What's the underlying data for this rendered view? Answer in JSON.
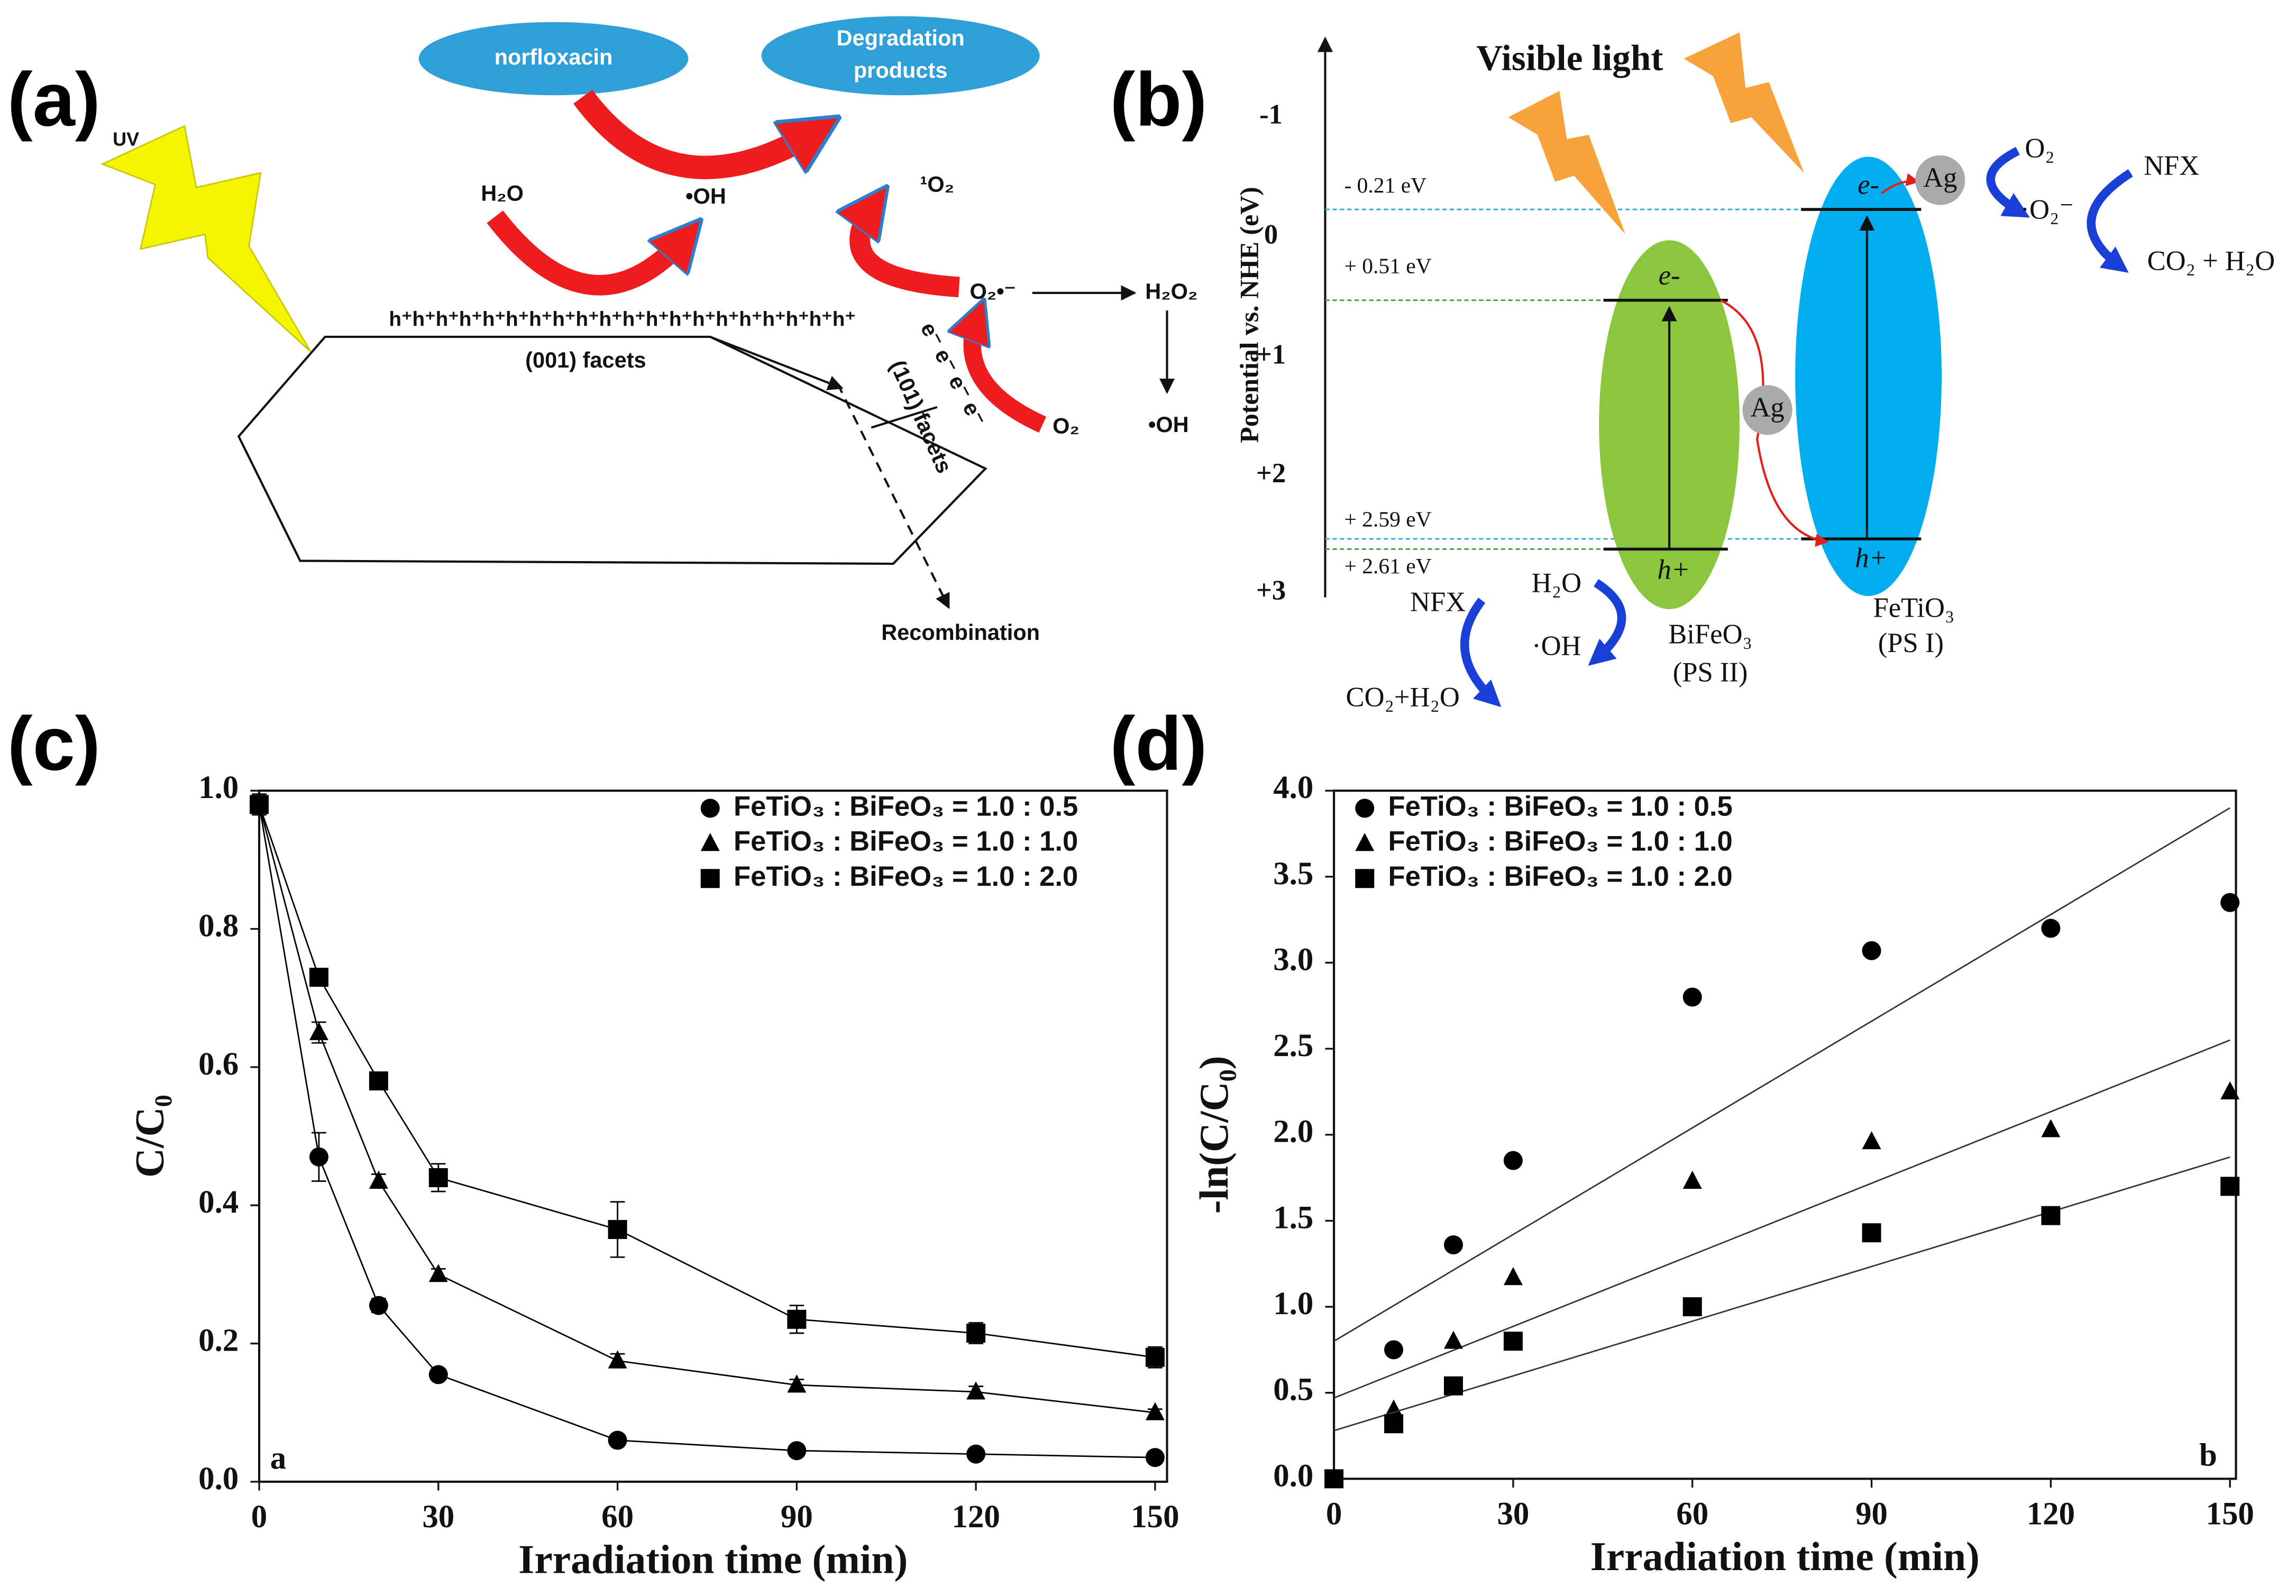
{
  "panel_a": {
    "label": "(a)",
    "light": "UV",
    "reactant": "norfloxacin",
    "product_lines": [
      "Degradation",
      "products"
    ],
    "water": "H₂O",
    "hydroxyl": "•OH",
    "singlet_oxygen": "¹O₂",
    "superoxide": "O₂•⁻",
    "peroxide": "H₂O₂",
    "hydroxyl_2": "•OH",
    "oxygen": "O₂",
    "holes": "h⁺h⁺h⁺h⁺h⁺h⁺h⁺h⁺h⁺h⁺h⁺h⁺h⁺h⁺h⁺h⁺h⁺h⁺h⁺h⁺",
    "facet_001": "(001) facets",
    "electrons": "e⁻ e⁻ e⁻ e⁻",
    "facet_101": "(101) facets",
    "recombination": "Recombination"
  },
  "panel_b": {
    "label": "(b)",
    "light": "Visible light",
    "axis_title": "Potential vs. NHE (eV)",
    "axis_ticks": [
      "-1",
      "0",
      "+1",
      "+2",
      "+3"
    ],
    "levels": [
      "- 0.21 eV",
      "+ 0.51 eV",
      "+ 2.59 eV",
      "+ 2.61 eV"
    ],
    "bifeo3": {
      "electron": "e-",
      "hole": "h+",
      "name": "BiFeO₃",
      "role": "(PS II)"
    },
    "fetio3": {
      "electron": "e-",
      "hole": "h+",
      "name": "FeTiO₃",
      "role": "(PS I)"
    },
    "silver": [
      "Ag",
      "Ag"
    ],
    "oxygen": "O₂",
    "superoxide": "·O₂⁻",
    "nfx_top": "NFX",
    "products_top": "CO₂ + H₂O",
    "water": "H₂O",
    "hydroxyl": "·OH",
    "nfx_bottom": "NFX",
    "products_bottom": "CO₂+H₂O"
  },
  "chart_data": [
    {
      "type": "line",
      "label": "(c)",
      "annotation": "a",
      "x_label": "Irradiation time (min)",
      "y_label": "C/C₀",
      "x": [
        0,
        10,
        20,
        30,
        60,
        90,
        120,
        150
      ],
      "xlim": [
        0,
        152
      ],
      "xticks": [
        0,
        30,
        60,
        90,
        120,
        150
      ],
      "ylim": [
        0,
        1
      ],
      "yticks": [
        {
          "value": 0,
          "label": "0.0"
        },
        {
          "value": 0.2,
          "label": "0.2"
        },
        {
          "value": 0.4,
          "label": "0.4"
        },
        {
          "value": 0.6,
          "label": "0.6"
        },
        {
          "value": 0.8,
          "label": "0.8"
        },
        {
          "value": 1,
          "label": "1.0"
        }
      ],
      "series": [
        {
          "name": "FeTiO₃ : BiFeO₃ = 1.0 : 0.5",
          "color": "#000000",
          "marker": "circle",
          "values": [
            0.98,
            0.47,
            0.255,
            0.155,
            0.06,
            0.045,
            0.04,
            0.035
          ],
          "errors": [
            0.01,
            0.035,
            0.01,
            0.005,
            0.005,
            0.005,
            0.005,
            0.005
          ]
        },
        {
          "name": "FeTiO₃ : BiFeO₃ = 1.0 : 1.0",
          "color": "#000000",
          "marker": "triangle",
          "values": [
            0.98,
            0.65,
            0.435,
            0.3,
            0.175,
            0.14,
            0.13,
            0.1
          ],
          "errors": [
            0.01,
            0.015,
            0.01,
            0.008,
            0.01,
            0.008,
            0.008,
            0.005
          ]
        },
        {
          "name": "FeTiO₃ : BiFeO₃ = 1.0 : 2.0",
          "color": "#000000",
          "marker": "square",
          "values": [
            0.98,
            0.73,
            0.58,
            0.44,
            0.365,
            0.235,
            0.215,
            0.18
          ],
          "errors": [
            0.015,
            0.01,
            0.01,
            0.02,
            0.04,
            0.02,
            0.015,
            0.015
          ]
        }
      ]
    },
    {
      "type": "scatter",
      "label": "(d)",
      "annotation": "b",
      "x_label": "Irradiation time (min)",
      "y_label": "-ln(C/C₀)",
      "x": [
        0,
        10,
        20,
        30,
        60,
        90,
        120,
        150
      ],
      "xlim": [
        0,
        151
      ],
      "xticks": [
        0,
        30,
        60,
        90,
        120,
        150
      ],
      "ylim": [
        0,
        4
      ],
      "yticks": [
        {
          "value": 0,
          "label": "0.0"
        },
        {
          "value": 0.5,
          "label": "0.5"
        },
        {
          "value": 1,
          "label": "1.0"
        },
        {
          "value": 1.5,
          "label": "1.5"
        },
        {
          "value": 2,
          "label": "2.0"
        },
        {
          "value": 2.5,
          "label": "2.5"
        },
        {
          "value": 3,
          "label": "3.0"
        },
        {
          "value": 3.5,
          "label": "3.5"
        },
        {
          "value": 4,
          "label": "4.0"
        }
      ],
      "series": [
        {
          "name": "FeTiO₃ : BiFeO₃ = 1.0 : 0.5",
          "color": "#000000",
          "marker": "circle",
          "values": [
            0,
            0.75,
            1.36,
            1.85,
            2.8,
            3.07,
            3.2,
            3.35
          ],
          "fit": {
            "x": [
              0,
              150
            ],
            "values": [
              0.8,
              3.9
            ]
          }
        },
        {
          "name": "FeTiO₃ : BiFeO₃ = 1.0 : 1.0",
          "color": "#000000",
          "marker": "triangle",
          "values": [
            0,
            0.4,
            0.8,
            1.17,
            1.73,
            1.96,
            2.03,
            2.25
          ],
          "fit": {
            "x": [
              0,
              150
            ],
            "values": [
              0.47,
              2.55
            ]
          }
        },
        {
          "name": "FeTiO₃ : BiFeO₃ = 1.0 : 2.0",
          "color": "#000000",
          "marker": "square",
          "values": [
            0,
            0.32,
            0.54,
            0.8,
            1.0,
            1.43,
            1.53,
            1.7
          ],
          "fit": {
            "x": [
              0,
              150
            ],
            "values": [
              0.28,
              1.87
            ]
          }
        }
      ]
    }
  ]
}
